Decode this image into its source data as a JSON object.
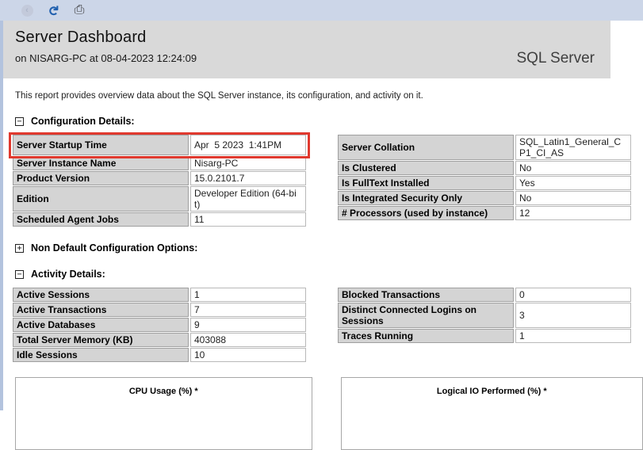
{
  "toolbar": {
    "back_icon": "back-arrow",
    "refresh_icon": "refresh",
    "print_icon": "printer",
    "back_glyph": "‹",
    "refresh_glyph": "↻",
    "print_glyph": "⎙"
  },
  "header": {
    "title": "Server Dashboard",
    "subtitle": "on NISARG-PC at 08-04-2023 12:24:09",
    "product": "SQL Server"
  },
  "description": "This report provides overview data about the SQL Server instance, its configuration, and activity on it.",
  "sections": [
    {
      "id": "configuration",
      "label": "Configuration Details:",
      "state": "expanded",
      "glyph": "−"
    },
    {
      "id": "non_default",
      "label": "Non Default Configuration Options:",
      "state": "collapsed",
      "glyph": "+"
    },
    {
      "id": "activity",
      "label": "Activity Details:",
      "state": "expanded",
      "glyph": "−"
    }
  ],
  "tables": {
    "config_left": [
      {
        "label": "Server Startup Time",
        "value": "Apr  5 2023  1:41PM",
        "highlighted": true
      },
      {
        "label": "Server Instance Name",
        "value": "Nisarg-PC"
      },
      {
        "label": "Product Version",
        "value": "15.0.2101.7"
      },
      {
        "label": "Edition",
        "value": "Developer Edition (64-bit)"
      },
      {
        "label": "Scheduled Agent Jobs",
        "value": "11"
      }
    ],
    "config_right": [
      {
        "label": "Server Collation",
        "value": "SQL_Latin1_General_CP1_CI_AS"
      },
      {
        "label": "Is Clustered",
        "value": "No"
      },
      {
        "label": "Is FullText Installed",
        "value": "Yes"
      },
      {
        "label": "Is Integrated Security Only",
        "value": "No"
      },
      {
        "label": "# Processors (used by instance)",
        "value": "12"
      }
    ],
    "activity_left": [
      {
        "label": "Active Sessions",
        "value": "1"
      },
      {
        "label": "Active Transactions",
        "value": "7"
      },
      {
        "label": "Active Databases",
        "value": "9"
      },
      {
        "label": "Total Server Memory (KB)",
        "value": "403088"
      },
      {
        "label": "Idle Sessions",
        "value": "10"
      }
    ],
    "activity_right": [
      {
        "label": "Blocked Transactions",
        "value": "0"
      },
      {
        "label": "Distinct Connected Logins on Sessions",
        "value": "3"
      },
      {
        "label": "Traces Running",
        "value": "1"
      }
    ]
  },
  "charts": [
    {
      "title": "CPU Usage (%) *"
    },
    {
      "title": "Logical IO Performed (%) *"
    }
  ],
  "colors": {
    "toolbar_bg": "#ccd6e8",
    "header_bg": "#d9d9d9",
    "page_left_border": "#b3c3de",
    "highlight_red": "#e0392e",
    "label_cell_bg": "#d4d4d4",
    "refresh_blue": "#1f5fae"
  }
}
